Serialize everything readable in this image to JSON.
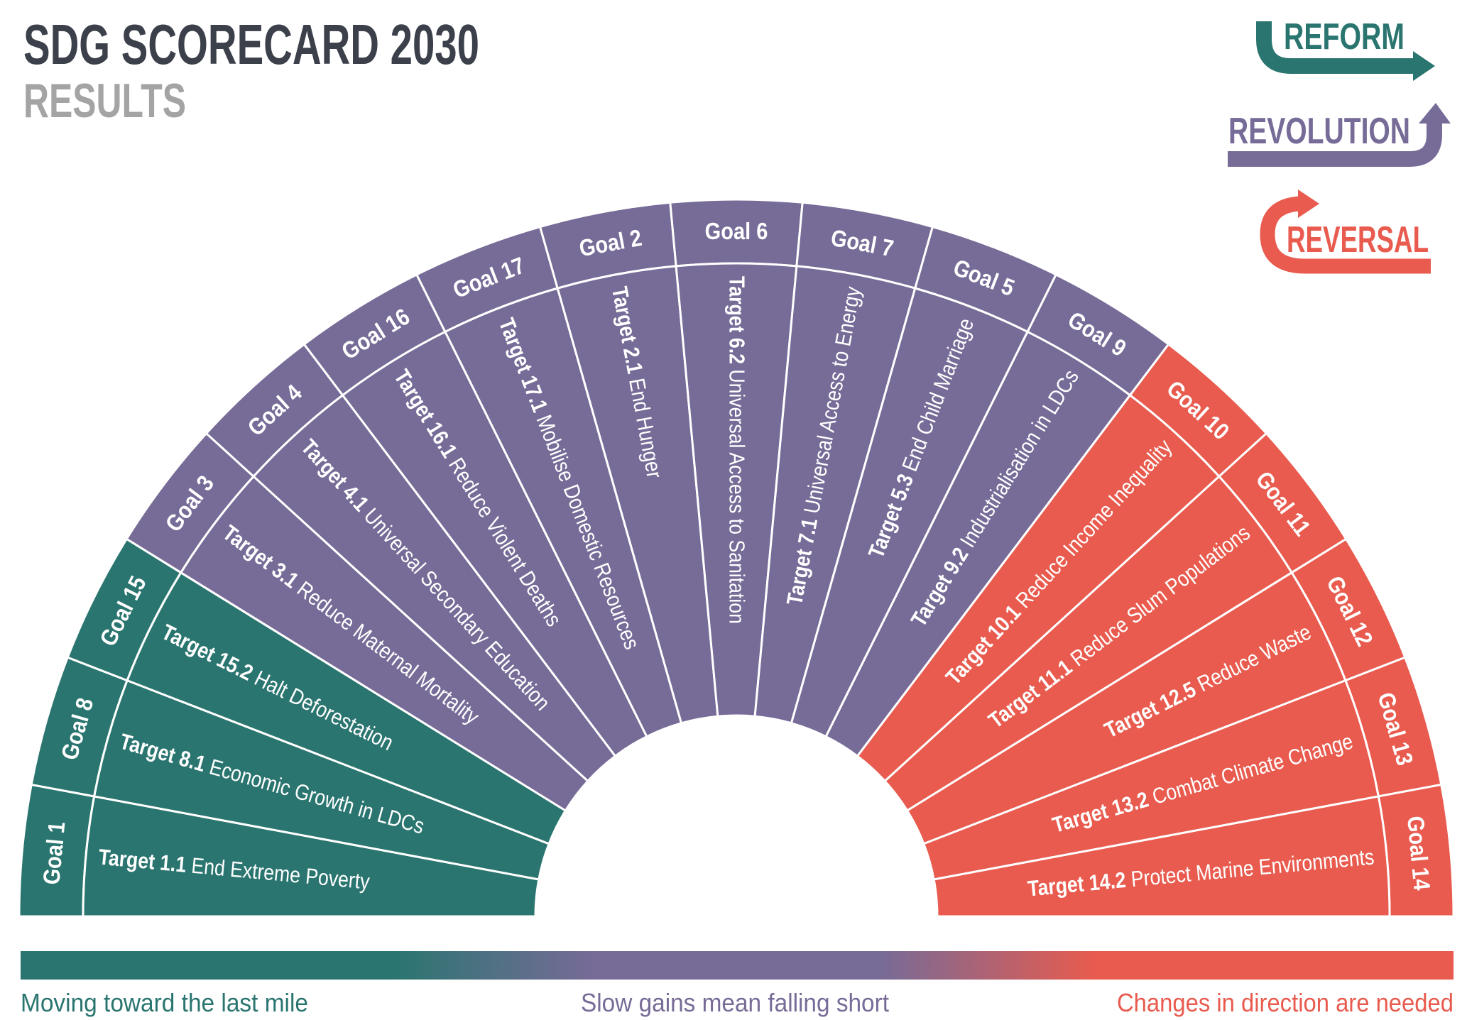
{
  "header": {
    "title": "SDG SCORECARD 2030",
    "subtitle": "RESULTS"
  },
  "legend": [
    {
      "label": "REFORM",
      "color": "#2a7570",
      "icon": "arrow-right-icon"
    },
    {
      "label": "REVOLUTION",
      "color": "#776b97",
      "icon": "arrow-up-icon"
    },
    {
      "label": "REVERSAL",
      "color": "#e85b4e",
      "icon": "arrow-u-turn-icon"
    }
  ],
  "colors": {
    "reform": "#2a7570",
    "revolution": "#776b97",
    "reversal": "#e85b4e"
  },
  "segments": [
    {
      "goal": "Goal 1",
      "target_id": "Target 1.1",
      "target_title": "End Extreme Poverty",
      "category": "reform"
    },
    {
      "goal": "Goal 8",
      "target_id": "Target 8.1",
      "target_title": "Economic Growth in LDCs",
      "category": "reform"
    },
    {
      "goal": "Goal 15",
      "target_id": "Target 15.2",
      "target_title": "Halt Deforestation",
      "category": "reform"
    },
    {
      "goal": "Goal 3",
      "target_id": "Target 3.1",
      "target_title": "Reduce Maternal Mortality",
      "category": "revolution"
    },
    {
      "goal": "Goal 4",
      "target_id": "Target 4.1",
      "target_title": "Universal Secondary Education",
      "category": "revolution"
    },
    {
      "goal": "Goal 16",
      "target_id": "Target 16.1",
      "target_title": "Reduce Violent Deaths",
      "category": "revolution"
    },
    {
      "goal": "Goal 17",
      "target_id": "Target 17.1",
      "target_title": "Mobilise Domestic Resources",
      "category": "revolution"
    },
    {
      "goal": "Goal 2",
      "target_id": "Target 2.1",
      "target_title": "End Hunger",
      "category": "revolution"
    },
    {
      "goal": "Goal 6",
      "target_id": "Target 6.2",
      "target_title": "Universal Access to Sanitation",
      "category": "revolution"
    },
    {
      "goal": "Goal 7",
      "target_id": "Target 7.1",
      "target_title": "Universal Access to Energy",
      "category": "revolution"
    },
    {
      "goal": "Goal 5",
      "target_id": "Target 5.3",
      "target_title": "End Child Marriage",
      "category": "revolution"
    },
    {
      "goal": "Goal 9",
      "target_id": "Target 9.2",
      "target_title": "Industrialisation in LDCs",
      "category": "revolution"
    },
    {
      "goal": "Goal 10",
      "target_id": "Target 10.1",
      "target_title": "Reduce Income Inequality",
      "category": "reversal"
    },
    {
      "goal": "Goal 11",
      "target_id": "Target 11.1",
      "target_title": "Reduce Slum Populations",
      "category": "reversal"
    },
    {
      "goal": "Goal 12",
      "target_id": "Target 12.5",
      "target_title": "Reduce Waste",
      "category": "reversal"
    },
    {
      "goal": "Goal 13",
      "target_id": "Target 13.2",
      "target_title": "Combat Climate Change",
      "category": "reversal"
    },
    {
      "goal": "Goal 14",
      "target_id": "Target 14.2",
      "target_title": "Protect Marine Environments",
      "category": "reversal"
    }
  ],
  "scale": {
    "left": "Moving toward the last mile",
    "middle": "Slow gains mean falling short",
    "right": "Changes in direction are needed"
  }
}
